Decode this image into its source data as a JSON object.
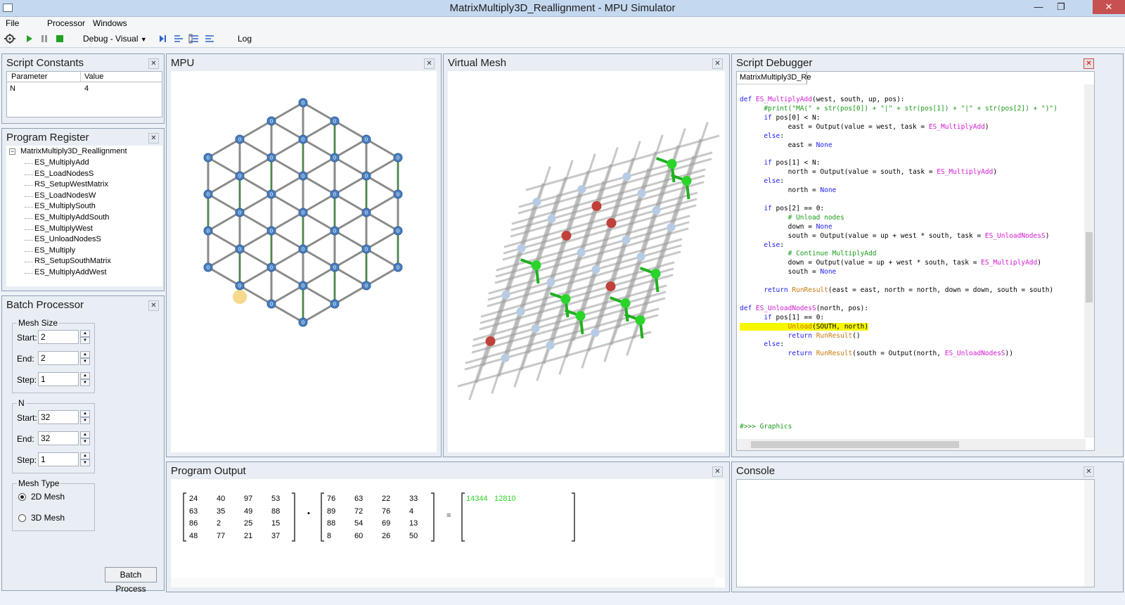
{
  "window": {
    "title": "MatrixMultiply3D_Reallignment - MPU Simulator",
    "min_glyph": "—",
    "max_glyph": "❐",
    "close_glyph": "✕"
  },
  "menu": {
    "file": "File",
    "processor": "Processor",
    "windows": "Windows"
  },
  "toolbar": {
    "mode": "Debug - Visual",
    "log": "Log"
  },
  "script_constants": {
    "title": "Script Constants",
    "columns": [
      "Parameter",
      "Value"
    ],
    "rows": [
      {
        "parameter": "N",
        "value": "4"
      }
    ]
  },
  "program_register": {
    "title": "Program Register",
    "root": "MatrixMultiply3D_Reallignment",
    "items": [
      "ES_MultiplyAdd",
      "ES_LoadNodesS",
      "RS_SetupWestMatrix",
      "ES_LoadNodesW",
      "ES_MultiplySouth",
      "ES_MultiplyAddSouth",
      "ES_MultiplyWest",
      "ES_UnloadNodesS",
      "ES_Multiply",
      "RS_SetupSouthMatrix",
      "ES_MultiplyAddWest"
    ]
  },
  "batch_processor": {
    "title": "Batch Processor",
    "mesh_size": {
      "legend": "Mesh Size",
      "start_label": "Start:",
      "start": "2",
      "end_label": "End:",
      "end": "2",
      "step_label": "Step:",
      "step": "1"
    },
    "n": {
      "legend": "N",
      "start_label": "Start:",
      "start": "32",
      "end_label": "End:",
      "end": "32",
      "step_label": "Step:",
      "step": "1"
    },
    "mesh_type": {
      "legend": "Mesh Type",
      "option_2d": "2D Mesh",
      "option_3d": "3D Mesh",
      "selected": "2D Mesh"
    },
    "button": "Batch Process"
  },
  "mpu": {
    "title": "MPU",
    "node_label": "0"
  },
  "virtual_mesh": {
    "title": "Virtual Mesh"
  },
  "script_debugger": {
    "title": "Script Debugger",
    "tab": "MatrixMultiply3D_Re",
    "highlight_line": 27
  },
  "program_output": {
    "title": "Program Output",
    "matrix_a": [
      [
        "24",
        "40",
        "97",
        "53"
      ],
      [
        "63",
        "35",
        "49",
        "88"
      ],
      [
        "86",
        "2",
        "25",
        "15"
      ],
      [
        "48",
        "77",
        "21",
        "37"
      ]
    ],
    "op_mul": "•",
    "matrix_b": [
      [
        "76",
        "63",
        "22",
        "33"
      ],
      [
        "89",
        "72",
        "76",
        "4"
      ],
      [
        "88",
        "54",
        "69",
        "13"
      ],
      [
        "8",
        "60",
        "26",
        "50"
      ]
    ],
    "op_eq": "=",
    "result_row": [
      "14344",
      "12810"
    ]
  },
  "console": {
    "title": "Console"
  },
  "colors": {
    "node_blue": "#4a7fc1",
    "node_light": "#b7cbe4",
    "node_red": "#c0403a",
    "node_green": "#2bd42b",
    "edge_green": "#1a8c1a",
    "highlight": "#f7f700"
  }
}
